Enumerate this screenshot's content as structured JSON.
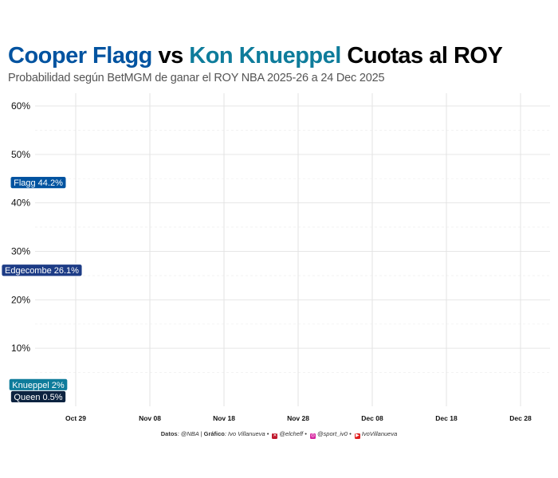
{
  "header": {
    "title_flagg": "Cooper Flagg",
    "title_vs": " vs ",
    "title_knueppel": "Kon Knueppel",
    "title_rest": " Cuotas al ROY",
    "subtitle": "Probabilidad según BetMGM de ganar el ROY NBA 2025-26 a 24 Dec 2025"
  },
  "colors": {
    "flagg": "#0053A0",
    "knueppel": "#0E7C9B",
    "edgecombe": "#1D3C86",
    "queen": "#0C2340",
    "title": "#000000"
  },
  "caption": {
    "datos_label": "Datos",
    "datos_value": ": @NBA | ",
    "grafico_label": "Gráfico",
    "grafico_value": ": Ivo Villanueva • ",
    "handle_x": "@elcheff",
    "sep1": " • ",
    "handle_ig": "@sport_iv0",
    "sep2": " • ",
    "handle_yt": "IvoVillanueva",
    "icon_x": "x-icon",
    "icon_ig": "instagram-icon",
    "icon_yt": "youtube-icon"
  },
  "chart_data": {
    "type": "line",
    "title": "",
    "xlabel": "",
    "ylabel": "",
    "x_ticks": [
      "Oct 29",
      "Nov 08",
      "Nov 18",
      "Nov 28",
      "Dec 08",
      "Dec 18",
      "Dec 28"
    ],
    "y_ticks": [
      "60%",
      "50%",
      "40%",
      "30%",
      "20%",
      "10%"
    ],
    "ylim": [
      0,
      60
    ],
    "grid": true,
    "series": [
      {
        "name": "Flagg",
        "label": "Flagg 44.2%",
        "color": "#0053A0",
        "last_value": 44.2
      },
      {
        "name": "Edgecombe",
        "label": "Edgecombe 26.1%",
        "color": "#1D3C86",
        "last_value": 26.1
      },
      {
        "name": "Knueppel",
        "label": "Knueppel 2%",
        "color": "#0E7C9B",
        "last_value": 2
      },
      {
        "name": "Queen",
        "label": "Queen 0.5%",
        "color": "#0C2340",
        "last_value": 0.5
      }
    ]
  }
}
